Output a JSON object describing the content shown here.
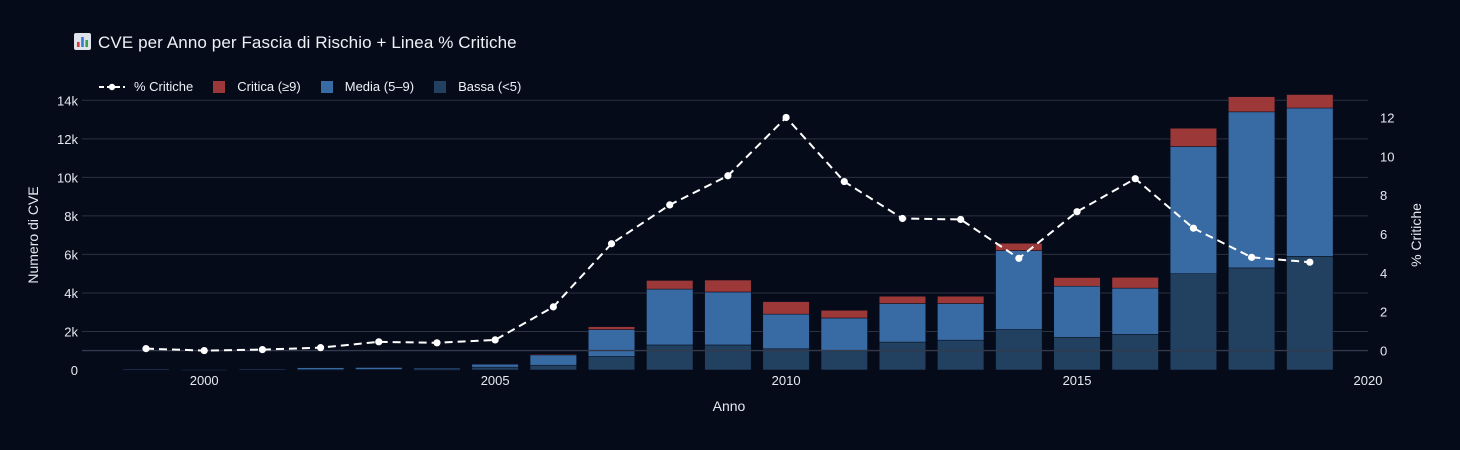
{
  "title": "CVE per Anno per Fascia di Rischio + Linea % Critiche",
  "colors": {
    "background": "#060b1a",
    "bassa": "#22405f",
    "media": "#386ba3",
    "critica": "#9c3838",
    "line": "#ffffff",
    "grid": "#2b3242"
  },
  "chart_data": {
    "type": "bar",
    "barmode": "stack",
    "xlabel": "Anno",
    "ylabel": "Numero di CVE",
    "y2label": "% Critiche",
    "xlim": [
      1997.9,
      2020
    ],
    "ylim": [
      0,
      14000
    ],
    "y2lim": [
      -1,
      12.9
    ],
    "x_ticks": [
      "2000",
      "2005",
      "2010",
      "2015",
      "2020"
    ],
    "y_ticks": [
      "0",
      "2k",
      "4k",
      "6k",
      "8k",
      "10k",
      "12k",
      "14k"
    ],
    "y2_ticks": [
      "0",
      "2",
      "4",
      "6",
      "8",
      "10",
      "12"
    ],
    "grid": true,
    "legend_position": "top-left",
    "x": [
      1999,
      2000,
      2001,
      2002,
      2003,
      2004,
      2005,
      2006,
      2007,
      2008,
      2009,
      2010,
      2011,
      2012,
      2013,
      2014,
      2015,
      2016,
      2017,
      2018,
      2019
    ],
    "series": [
      {
        "name": "% Critiche",
        "type": "line",
        "axis": "y2",
        "values": [
          0.1,
          0.0,
          0.05,
          0.15,
          0.45,
          0.4,
          0.55,
          2.25,
          5.5,
          7.5,
          9.0,
          12.0,
          8.7,
          6.8,
          6.75,
          4.75,
          7.15,
          8.85,
          6.3,
          4.8,
          4.55
        ]
      },
      {
        "name": "Critica (≥9)",
        "type": "bar",
        "values": [
          0,
          0,
          0,
          0,
          0,
          0,
          0,
          20,
          150,
          450,
          620,
          650,
          400,
          380,
          380,
          380,
          450,
          560,
          950,
          790,
          700
        ]
      },
      {
        "name": "Media (5–9)",
        "type": "bar",
        "values": [
          30,
          20,
          30,
          100,
          100,
          70,
          150,
          550,
          1400,
          2900,
          2750,
          1800,
          1700,
          2000,
          1900,
          4100,
          2650,
          2400,
          6600,
          8100,
          7700
        ]
      },
      {
        "name": "Bassa (<5)",
        "type": "bar",
        "values": [
          0,
          0,
          0,
          20,
          30,
          20,
          150,
          250,
          700,
          1300,
          1300,
          1100,
          1000,
          1450,
          1550,
          2100,
          1700,
          1850,
          5000,
          5300,
          5900
        ]
      }
    ]
  }
}
